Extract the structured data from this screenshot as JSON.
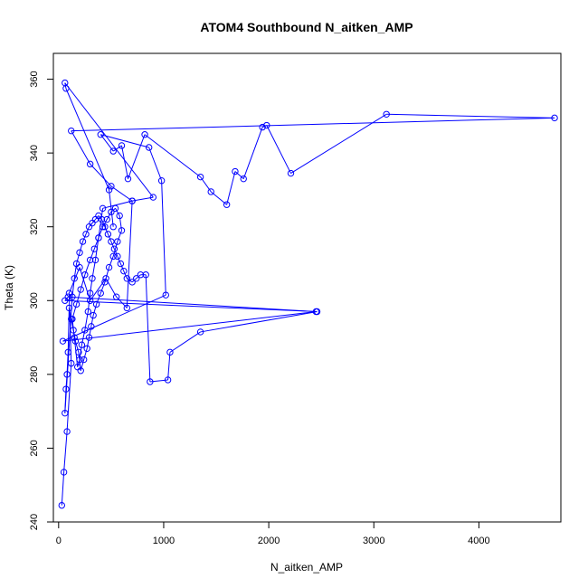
{
  "chart_data": {
    "type": "line",
    "title": "ATOM4 Southbound N_aitken_AMP",
    "xlabel": "N_aitken_AMP",
    "ylabel": "Theta (K)",
    "xlim": [
      -50,
      4780
    ],
    "ylim": [
      240,
      367
    ],
    "xticks": [
      0,
      1000,
      2000,
      3000,
      4000
    ],
    "xtick_labels": [
      "0",
      "1000",
      "2000",
      "3000",
      "4000"
    ],
    "yticks": [
      240,
      260,
      280,
      300,
      320,
      340,
      360
    ],
    "ytick_labels": [
      "240",
      "260",
      "280",
      "300",
      "320",
      "340",
      "360"
    ],
    "grid": false,
    "legend": "none",
    "series_color": "#0000ff",
    "series": [
      {
        "markers": "open-circle",
        "x": [
          30,
          50,
          80,
          120,
          100,
          200,
          300,
          450,
          550,
          650,
          700,
          420,
          380,
          350,
          320,
          300,
          280,
          250,
          220,
          200,
          180,
          150,
          130,
          170,
          210,
          250,
          300,
          340,
          380,
          420,
          460,
          500,
          540,
          580,
          600,
          560,
          520,
          480,
          440,
          400,
          360,
          330,
          310,
          290,
          270,
          240,
          210,
          190,
          160,
          140,
          120,
          100,
          90,
          80,
          70,
          60,
          130,
          150,
          170,
          200,
          230,
          260,
          290,
          320,
          350,
          380,
          410,
          440,
          470,
          500,
          530,
          560,
          590,
          620,
          650,
          700,
          740,
          780,
          830,
          870,
          1040,
          1060,
          1350,
          2460,
          60,
          90,
          2450,
          40,
          1020,
          980,
          860,
          400,
          520,
          600,
          660,
          820,
          1350,
          1450,
          1600,
          1680,
          1760,
          1940,
          1980,
          2210,
          3120,
          4720,
          120,
          300,
          500,
          700,
          900,
          60,
          70,
          480,
          520
        ],
        "y": [
          244.5,
          253.5,
          264.5,
          283,
          302,
          309,
          300,
          306,
          301,
          298,
          327,
          325,
          317,
          311,
          306,
          302,
          297,
          292,
          288,
          284,
          282,
          290,
          295,
          299,
          303,
          307,
          311,
          314,
          317,
          320,
          322,
          324,
          325,
          323,
          319,
          316,
          312,
          309,
          305,
          302,
          299,
          296,
          293,
          290,
          287,
          284,
          281,
          286,
          289,
          292,
          295,
          298,
          286,
          280,
          276,
          269.5,
          301,
          306,
          310,
          313,
          316,
          318,
          320,
          321,
          322,
          323,
          322,
          320,
          318,
          316,
          314,
          312,
          310,
          308,
          306,
          305,
          306,
          307,
          307,
          278,
          278.5,
          286,
          291.5,
          297,
          300,
          301,
          297,
          289,
          301.5,
          332.5,
          341.5,
          345,
          340.5,
          342,
          333,
          345,
          333.5,
          329.5,
          326,
          335,
          333,
          347,
          347.5,
          334.5,
          350.5,
          349.5,
          346,
          337,
          331,
          327,
          328,
          359,
          357.5,
          330,
          320
        ]
      }
    ]
  }
}
